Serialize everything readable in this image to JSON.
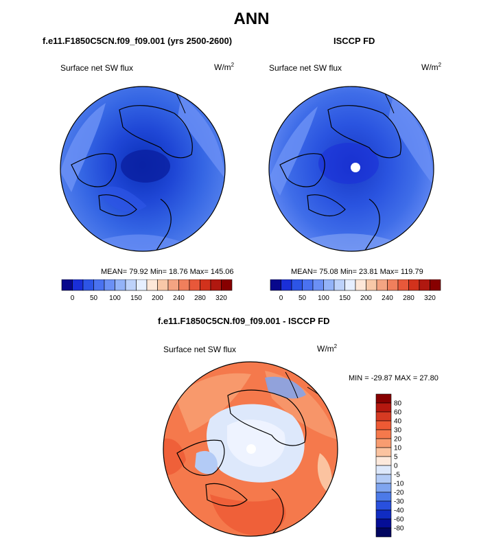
{
  "main_title": "ANN",
  "panels": [
    {
      "id": "model",
      "header": "f.e11.F1850C5CN.f09_f09.001 (yrs 2500-2600)",
      "variable": "Surface net SW flux",
      "unit_base": "W/m",
      "unit_exp": "2",
      "stats": "MEAN=  79.92  Min=  18.76  Max= 145.06",
      "stats_values": {
        "mean": 79.92,
        "min": 18.76,
        "max": 145.06
      }
    },
    {
      "id": "obs",
      "header": "ISCCP FD",
      "variable": "Surface net SW flux",
      "unit_base": "W/m",
      "unit_exp": "2",
      "stats": "MEAN=  75.08  Min=  23.81  Max= 119.79",
      "stats_values": {
        "mean": 75.08,
        "min": 23.81,
        "max": 119.79
      }
    },
    {
      "id": "diff",
      "header": "f.e11.F1850C5CN.f09_f09.001 - ISCCP FD",
      "variable": "Surface net SW flux",
      "unit_base": "W/m",
      "unit_exp": "2",
      "stats": "MIN = -29.87 MAX =  27.80",
      "stats_values": {
        "min": -29.87,
        "max": 27.8
      }
    }
  ],
  "chart_data": [
    {
      "type": "heatmap",
      "projection": "north polar stereographic",
      "title": "Surface net SW flux",
      "panel": "f.e11.F1850C5CN.f09_f09.001 (yrs 2500-2600)",
      "colorbar": {
        "orientation": "horizontal",
        "tick_labels": [
          "0",
          "50",
          "100",
          "150",
          "200",
          "240",
          "280",
          "320"
        ],
        "colors": [
          "#08088c",
          "#1a2fd8",
          "#2d55e6",
          "#4a72f0",
          "#6b90f5",
          "#93b3f8",
          "#bdd2fa",
          "#e6efff",
          "#fde7d8",
          "#f8c8a8",
          "#f4a482",
          "#f07f5c",
          "#e8583a",
          "#d2321c",
          "#b01810",
          "#870000"
        ]
      },
      "mean": 79.92,
      "min": 18.76,
      "max": 145.06
    },
    {
      "type": "heatmap",
      "projection": "north polar stereographic",
      "title": "Surface net SW flux",
      "panel": "ISCCP FD",
      "colorbar": {
        "orientation": "horizontal",
        "tick_labels": [
          "0",
          "50",
          "100",
          "150",
          "200",
          "240",
          "280",
          "320"
        ],
        "colors": [
          "#08088c",
          "#1a2fd8",
          "#2d55e6",
          "#4a72f0",
          "#6b90f5",
          "#93b3f8",
          "#bdd2fa",
          "#e6efff",
          "#fde7d8",
          "#f8c8a8",
          "#f4a482",
          "#f07f5c",
          "#e8583a",
          "#d2321c",
          "#b01810",
          "#870000"
        ]
      },
      "mean": 75.08,
      "min": 23.81,
      "max": 119.79
    },
    {
      "type": "heatmap",
      "projection": "north polar stereographic",
      "title": "Surface net SW flux",
      "panel": "f.e11.F1850C5CN.f09_f09.001 - ISCCP FD",
      "colorbar": {
        "orientation": "vertical",
        "tick_labels": [
          "80",
          "60",
          "40",
          "30",
          "20",
          "10",
          "5",
          "0",
          "-5",
          "-10",
          "-20",
          "-30",
          "-40",
          "-60",
          "-80"
        ],
        "colors": [
          "#870000",
          "#b5180f",
          "#d63a22",
          "#ee5a34",
          "#f5794c",
          "#f89c70",
          "#fbc3a0",
          "#fde9dc",
          "#dde8fb",
          "#b3cbf6",
          "#7fa5f0",
          "#4c7ae8",
          "#2950de",
          "#102cc2",
          "#050e96",
          "#020660"
        ]
      },
      "min": -29.87,
      "max": 27.8
    }
  ]
}
